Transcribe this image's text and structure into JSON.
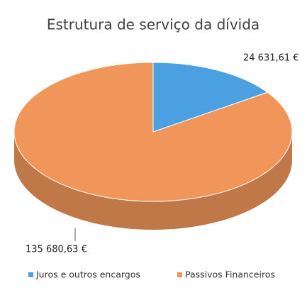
{
  "chart_data": {
    "type": "pie",
    "title": "Estrutura de serviço da dívida",
    "categories": [
      "Juros e outros encargos",
      "Passivos Financeiros"
    ],
    "values": [
      24631.61,
      135680.63
    ],
    "value_labels": [
      "24 631,61 €",
      "135 680,63 €"
    ],
    "colors": [
      "#4aa0e0",
      "#f0965a"
    ],
    "legend": "bottom"
  }
}
